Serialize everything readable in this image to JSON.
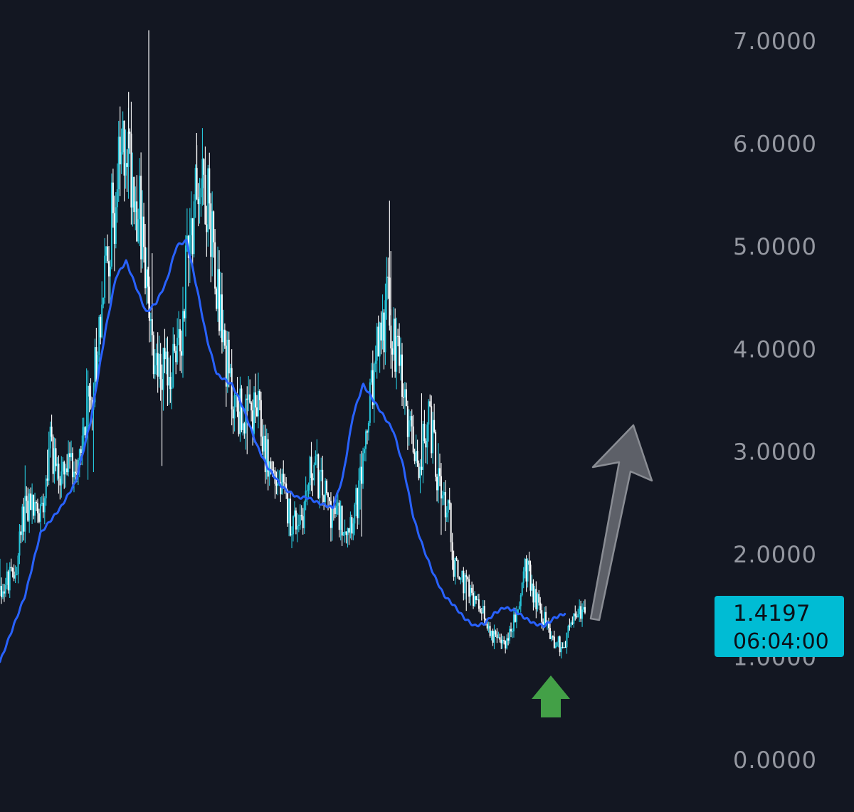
{
  "chart_data": {
    "type": "candlestick",
    "title": "",
    "xlabel": "",
    "ylabel": "",
    "ylim": [
      0,
      7.1
    ],
    "y_ticks": [
      "7.0000",
      "6.0000",
      "5.0000",
      "4.0000",
      "3.0000",
      "2.0000",
      "1.0000",
      "0.0000"
    ],
    "grid": false,
    "colors": {
      "background": "#131722",
      "up_candle": "#26c6da",
      "down_candle": "#ffffff",
      "moving_average": "#2962ff",
      "tick_text": "#9598a1",
      "badge": "#00bcd4",
      "up_arrow": "#43a047",
      "projection_arrow": "#5d6068"
    },
    "price_waypoints": [
      [
        0,
        1.65
      ],
      [
        3,
        1.8
      ],
      [
        5,
        2.5
      ],
      [
        8,
        2.4
      ],
      [
        10,
        3.1
      ],
      [
        12,
        2.7
      ],
      [
        15,
        2.9
      ],
      [
        18,
        3.5
      ],
      [
        22,
        5.2
      ],
      [
        25,
        6.1
      ],
      [
        28,
        5.2
      ],
      [
        30,
        4.0
      ],
      [
        33,
        3.7
      ],
      [
        36,
        4.1
      ],
      [
        37,
        5.0
      ],
      [
        40,
        5.8
      ],
      [
        42,
        5.2
      ],
      [
        44,
        4.2
      ],
      [
        46,
        3.5
      ],
      [
        49,
        3.3
      ],
      [
        51,
        3.4
      ],
      [
        53,
        2.9
      ],
      [
        56,
        2.6
      ],
      [
        58,
        2.3
      ],
      [
        60,
        2.4
      ],
      [
        62,
        2.9
      ],
      [
        64,
        2.6
      ],
      [
        66,
        2.4
      ],
      [
        69,
        2.3
      ],
      [
        71,
        2.5
      ],
      [
        73,
        3.3
      ],
      [
        75,
        4.0
      ],
      [
        77,
        4.5
      ],
      [
        79,
        3.8
      ],
      [
        81,
        3.2
      ],
      [
        83,
        2.9
      ],
      [
        85,
        3.4
      ],
      [
        87,
        2.7
      ],
      [
        89,
        2.4
      ],
      [
        90,
        1.9
      ],
      [
        92,
        1.7
      ],
      [
        95,
        1.45
      ],
      [
        97,
        1.3
      ],
      [
        99,
        1.1
      ],
      [
        101,
        1.2
      ],
      [
        103,
        1.5
      ],
      [
        104,
        1.9
      ],
      [
        106,
        1.6
      ],
      [
        108,
        1.35
      ],
      [
        110,
        1.15
      ],
      [
        112,
        1.1
      ],
      [
        113,
        1.3
      ],
      [
        115,
        1.47
      ],
      [
        116,
        1.42
      ]
    ],
    "moving_average": [
      [
        0,
        0.95
      ],
      [
        5,
        1.6
      ],
      [
        8,
        2.2
      ],
      [
        12,
        2.45
      ],
      [
        15,
        2.7
      ],
      [
        18,
        3.3
      ],
      [
        21,
        4.2
      ],
      [
        23,
        4.7
      ],
      [
        25,
        4.85
      ],
      [
        27,
        4.6
      ],
      [
        29,
        4.35
      ],
      [
        31,
        4.45
      ],
      [
        33,
        4.65
      ],
      [
        35,
        5.0
      ],
      [
        37,
        5.05
      ],
      [
        39,
        4.6
      ],
      [
        41,
        4.1
      ],
      [
        43,
        3.75
      ],
      [
        46,
        3.65
      ],
      [
        48,
        3.45
      ],
      [
        51,
        3.05
      ],
      [
        53,
        2.85
      ],
      [
        56,
        2.65
      ],
      [
        59,
        2.55
      ],
      [
        61,
        2.55
      ],
      [
        63,
        2.5
      ],
      [
        66,
        2.45
      ],
      [
        68,
        2.75
      ],
      [
        70,
        3.35
      ],
      [
        72,
        3.65
      ],
      [
        74,
        3.5
      ],
      [
        76,
        3.35
      ],
      [
        78,
        3.2
      ],
      [
        80,
        2.85
      ],
      [
        82,
        2.35
      ],
      [
        84,
        2.05
      ],
      [
        86,
        1.8
      ],
      [
        88,
        1.6
      ],
      [
        90,
        1.5
      ],
      [
        92,
        1.38
      ],
      [
        94,
        1.3
      ],
      [
        96,
        1.32
      ],
      [
        98,
        1.42
      ],
      [
        100,
        1.48
      ],
      [
        102,
        1.45
      ],
      [
        104,
        1.38
      ],
      [
        106,
        1.32
      ],
      [
        108,
        1.3
      ],
      [
        110,
        1.38
      ],
      [
        112,
        1.42
      ]
    ],
    "last_price": "1.4197",
    "countdown": "06:04:00"
  }
}
